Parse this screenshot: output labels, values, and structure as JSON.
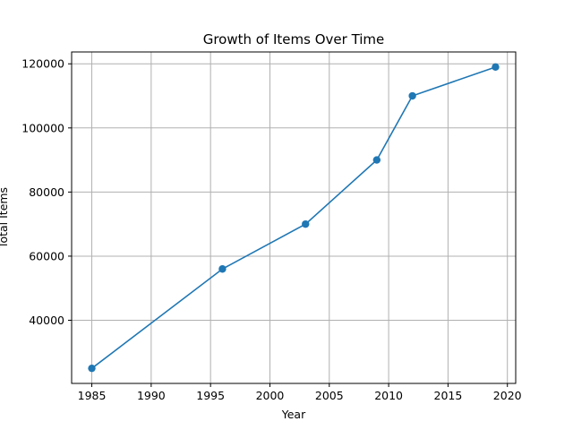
{
  "chart_data": {
    "type": "line",
    "title": "Growth of Items Over Time",
    "xlabel": "Year",
    "ylabel": "Total Items",
    "x": [
      1985,
      1996,
      2003,
      2009,
      2012,
      2019
    ],
    "series": [
      {
        "values": [
          25000,
          56000,
          70000,
          90000,
          110000,
          119000
        ]
      }
    ],
    "xticks": [
      1985,
      1990,
      1995,
      2000,
      2005,
      2010,
      2015,
      2020
    ],
    "yticks": [
      40000,
      60000,
      80000,
      100000,
      120000
    ],
    "xlim": [
      1983.3,
      2020.7
    ],
    "ylim": [
      20300,
      123700
    ],
    "grid": true,
    "markers": "circle",
    "colors": {
      "line": "#1f77b4",
      "grid": "#b0b0b0"
    }
  }
}
